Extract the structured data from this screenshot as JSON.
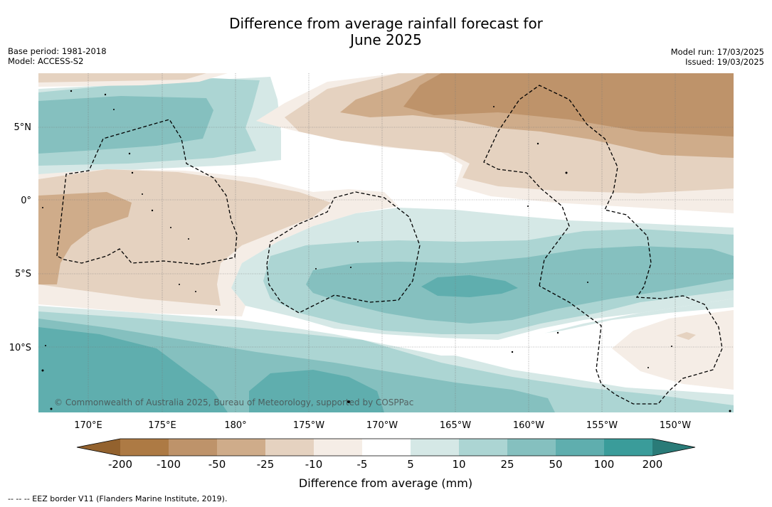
{
  "title": {
    "line1": "Difference from average rainfall forecast for",
    "line2": "June 2025"
  },
  "meta": {
    "base_period": "Base period: 1981-2018",
    "model": "Model: ACCESS-S2",
    "model_run": "Model run: 17/03/2025",
    "issued": "Issued: 19/03/2025"
  },
  "map": {
    "lat_labels": [
      "5°N",
      "0°",
      "5°S",
      "10°S"
    ],
    "lon_labels": [
      "170°E",
      "175°E",
      "180°",
      "175°W",
      "170°W",
      "165°W",
      "160°W",
      "155°W",
      "150°W"
    ],
    "watermark": "© Commonwealth of Australia 2025, Bureau of Meteorology, supported by COSPPac"
  },
  "colorbar": {
    "label": "Difference from average (mm)",
    "ticks": [
      "-200",
      "-100",
      "-50",
      "-25",
      "-10",
      "-5",
      "5",
      "10",
      "25",
      "50",
      "100",
      "200"
    ],
    "colors": {
      "under": "#93622e",
      "b1": "#ad7a44",
      "b2": "#be936a",
      "b3": "#cfac8a",
      "b4": "#e5d2c0",
      "b5": "#f5ede6",
      "b6": "#ffffff",
      "b7": "#d5e8e6",
      "b8": "#acd5d3",
      "b9": "#85c0bf",
      "b10": "#5faeae",
      "b11": "#3a9c9a",
      "over": "#2a7b78"
    }
  },
  "footer": "--  --  -- EEZ border V11 (Flanders Marine Institute, 2019)."
}
